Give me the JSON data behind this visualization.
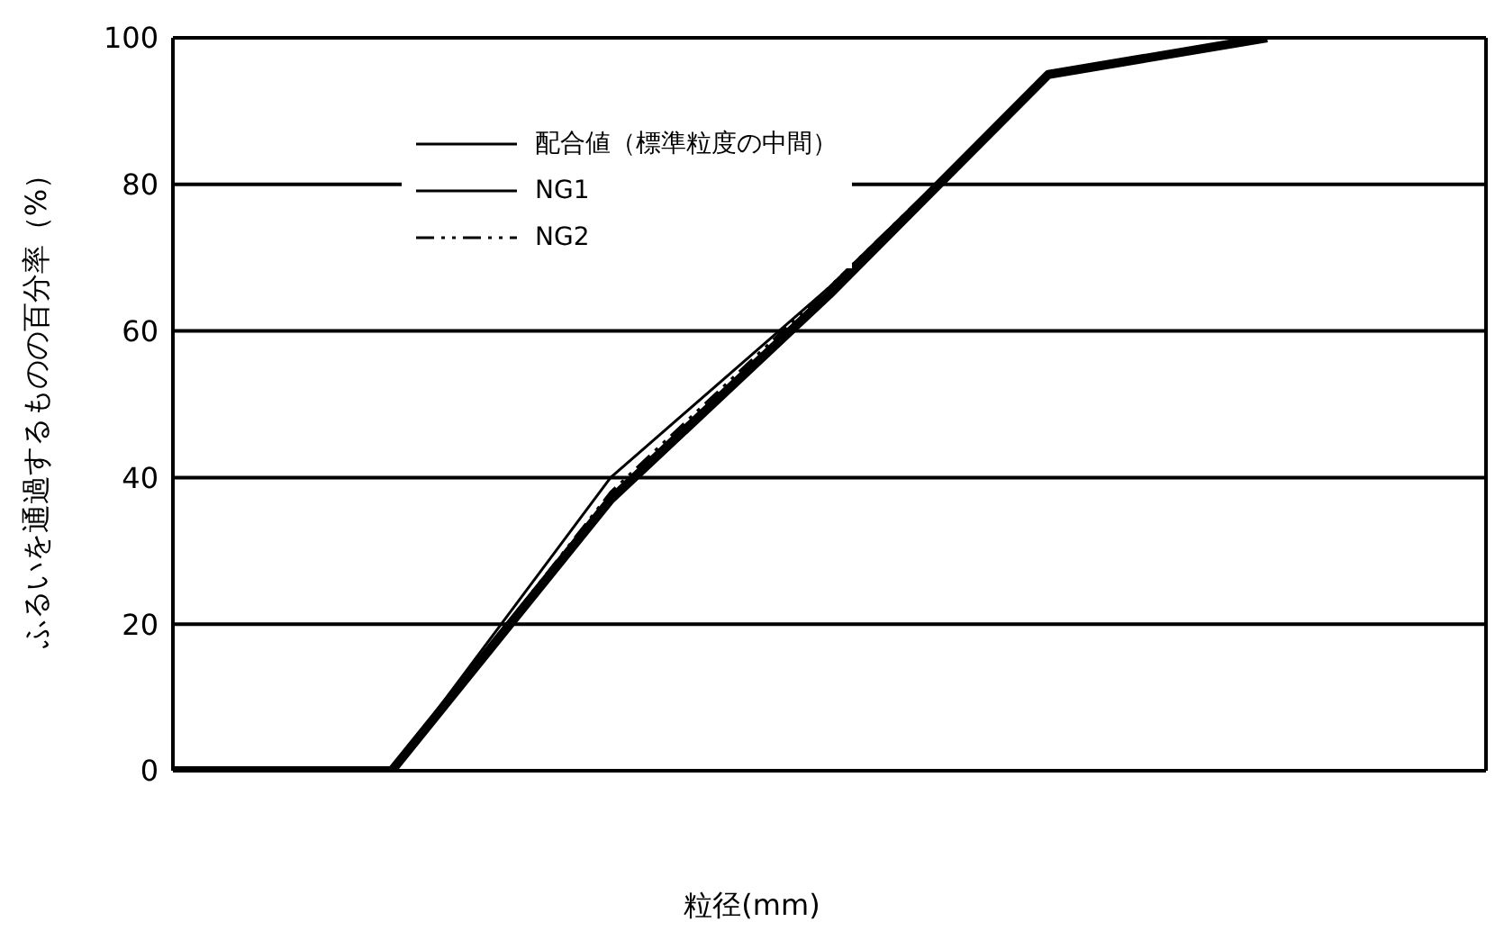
{
  "chart_data": {
    "type": "line",
    "xlabel": "粒径(mm)",
    "ylabel": "ふるいを通過するものの百分率（%）",
    "categories": [
      null,
      null,
      null,
      null,
      null,
      null,
      null
    ],
    "series": [
      {
        "name": "配合値（標準粒度の中間）",
        "color": "#000000",
        "line_style": "solid",
        "values": [
          0,
          0,
          40,
          66,
          95,
          100,
          null
        ]
      },
      {
        "name": "NG1",
        "color": "#000000",
        "line_style": "solid",
        "values": [
          0,
          0,
          37,
          65,
          95,
          100,
          null
        ]
      },
      {
        "name": "NG2",
        "color": "#000000",
        "line_style": "dashed",
        "values": [
          0,
          0,
          38,
          66,
          95,
          100,
          null
        ]
      }
    ],
    "ylim": [
      0,
      100
    ],
    "yticks": [
      0,
      20,
      40,
      60,
      80,
      100
    ],
    "grid": true,
    "legend": "top left",
    "marker": "none",
    "tick_labels": "y"
  }
}
